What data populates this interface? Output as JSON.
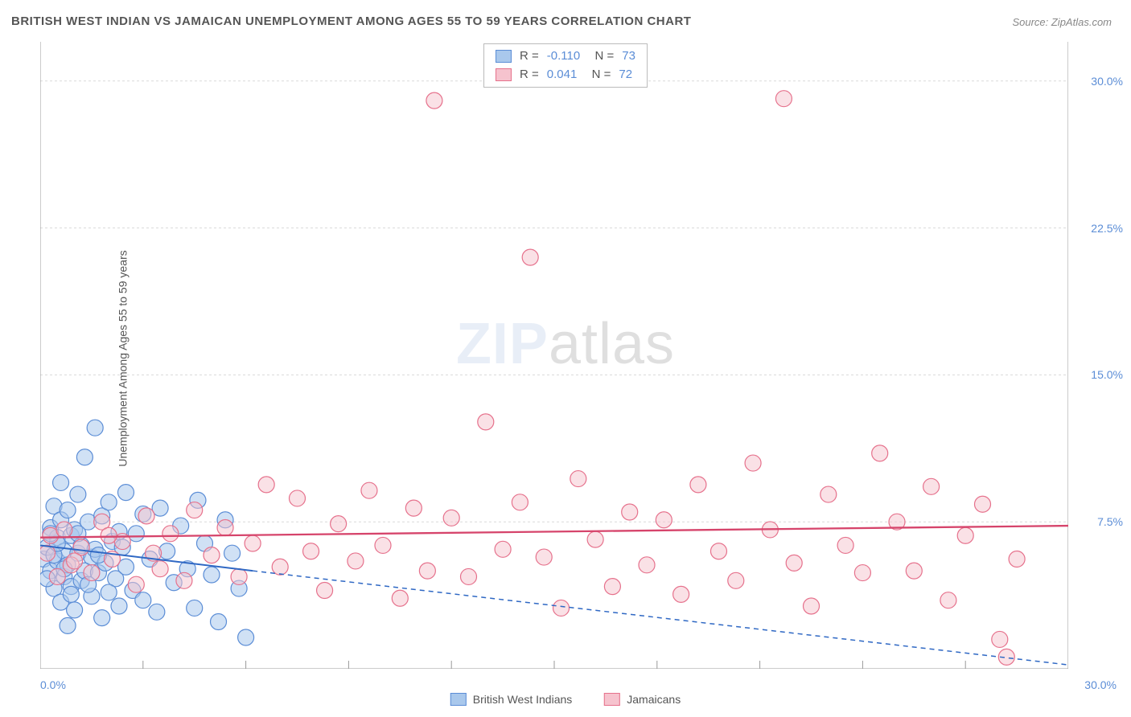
{
  "title": "BRITISH WEST INDIAN VS JAMAICAN UNEMPLOYMENT AMONG AGES 55 TO 59 YEARS CORRELATION CHART",
  "source": "Source: ZipAtlas.com",
  "ylabel": "Unemployment Among Ages 55 to 59 years",
  "watermark_a": "ZIP",
  "watermark_b": "atlas",
  "chart": {
    "type": "scatter",
    "xlim": [
      0,
      30
    ],
    "ylim": [
      0,
      32
    ],
    "x_axis_min_label": "0.0%",
    "x_axis_max_label": "30.0%",
    "y_ticks": [
      7.5,
      15.0,
      22.5,
      30.0
    ],
    "y_tick_labels": [
      "7.5%",
      "15.0%",
      "22.5%",
      "30.0%"
    ],
    "x_minor_ticks": [
      3,
      6,
      9,
      12,
      15,
      18,
      21,
      24,
      27
    ],
    "grid_color": "#d9d9d9",
    "axis_color": "#999999",
    "background": "#ffffff",
    "marker_radius": 10,
    "marker_stroke_width": 1.2,
    "series": [
      {
        "name": "British West Indians",
        "fill": "#a9c8ec",
        "stroke": "#5b8dd6",
        "fill_opacity": 0.55,
        "R": "-0.110",
        "N": "73",
        "trend": {
          "x1": 0,
          "y1": 6.3,
          "x2": 6.2,
          "y2": 5.0,
          "dash_x2": 30,
          "dash_y2": 0.2,
          "color": "#2f68c4",
          "width": 2
        },
        "points": [
          [
            0.1,
            5.6
          ],
          [
            0.2,
            6.2
          ],
          [
            0.3,
            5.0
          ],
          [
            0.3,
            7.2
          ],
          [
            0.4,
            4.1
          ],
          [
            0.4,
            8.3
          ],
          [
            0.5,
            5.5
          ],
          [
            0.5,
            6.7
          ],
          [
            0.6,
            3.4
          ],
          [
            0.6,
            7.6
          ],
          [
            0.6,
            9.5
          ],
          [
            0.7,
            4.7
          ],
          [
            0.7,
            6.0
          ],
          [
            0.8,
            2.2
          ],
          [
            0.8,
            5.3
          ],
          [
            0.8,
            8.1
          ],
          [
            0.9,
            6.8
          ],
          [
            0.9,
            4.2
          ],
          [
            1.0,
            7.1
          ],
          [
            1.0,
            3.0
          ],
          [
            1.1,
            5.9
          ],
          [
            1.1,
            8.9
          ],
          [
            1.2,
            6.3
          ],
          [
            1.2,
            4.5
          ],
          [
            1.3,
            10.8
          ],
          [
            1.3,
            5.0
          ],
          [
            1.4,
            7.5
          ],
          [
            1.5,
            5.7
          ],
          [
            1.5,
            3.7
          ],
          [
            1.6,
            6.1
          ],
          [
            1.6,
            12.3
          ],
          [
            1.7,
            4.9
          ],
          [
            1.8,
            7.8
          ],
          [
            1.8,
            2.6
          ],
          [
            1.9,
            5.4
          ],
          [
            2.0,
            8.5
          ],
          [
            2.1,
            6.5
          ],
          [
            2.2,
            4.6
          ],
          [
            2.3,
            3.2
          ],
          [
            2.3,
            7.0
          ],
          [
            2.5,
            9.0
          ],
          [
            2.5,
            5.2
          ],
          [
            2.7,
            4.0
          ],
          [
            2.8,
            6.9
          ],
          [
            3.0,
            3.5
          ],
          [
            3.0,
            7.9
          ],
          [
            3.2,
            5.6
          ],
          [
            3.4,
            2.9
          ],
          [
            3.5,
            8.2
          ],
          [
            3.7,
            6.0
          ],
          [
            3.9,
            4.4
          ],
          [
            4.1,
            7.3
          ],
          [
            4.3,
            5.1
          ],
          [
            4.5,
            3.1
          ],
          [
            4.6,
            8.6
          ],
          [
            4.8,
            6.4
          ],
          [
            5.0,
            4.8
          ],
          [
            5.2,
            2.4
          ],
          [
            5.4,
            7.6
          ],
          [
            5.6,
            5.9
          ],
          [
            5.8,
            4.1
          ],
          [
            6.0,
            1.6
          ],
          [
            0.4,
            5.8
          ],
          [
            0.5,
            6.4
          ],
          [
            0.7,
            5.1
          ],
          [
            0.9,
            3.8
          ],
          [
            1.1,
            6.9
          ],
          [
            1.4,
            4.3
          ],
          [
            1.7,
            5.8
          ],
          [
            2.0,
            3.9
          ],
          [
            2.4,
            6.2
          ],
          [
            0.2,
            4.6
          ],
          [
            0.3,
            6.9
          ]
        ]
      },
      {
        "name": "Jamaicans",
        "fill": "#f6c3ce",
        "stroke": "#e6718c",
        "fill_opacity": 0.5,
        "R": "0.041",
        "N": "72",
        "trend": {
          "x1": 0,
          "y1": 6.7,
          "x2": 30,
          "y2": 7.3,
          "color": "#d6446b",
          "width": 2.3
        },
        "points": [
          [
            0.2,
            5.9
          ],
          [
            0.3,
            6.8
          ],
          [
            0.5,
            4.7
          ],
          [
            0.7,
            7.1
          ],
          [
            0.9,
            5.3
          ],
          [
            1.2,
            6.2
          ],
          [
            1.5,
            4.9
          ],
          [
            1.8,
            7.5
          ],
          [
            2.1,
            5.6
          ],
          [
            2.4,
            6.5
          ],
          [
            2.8,
            4.3
          ],
          [
            3.1,
            7.8
          ],
          [
            3.5,
            5.1
          ],
          [
            3.8,
            6.9
          ],
          [
            4.2,
            4.5
          ],
          [
            4.5,
            8.1
          ],
          [
            5.0,
            5.8
          ],
          [
            5.4,
            7.2
          ],
          [
            5.8,
            4.7
          ],
          [
            6.2,
            6.4
          ],
          [
            6.6,
            9.4
          ],
          [
            7.0,
            5.2
          ],
          [
            7.5,
            8.7
          ],
          [
            7.9,
            6.0
          ],
          [
            8.3,
            4.0
          ],
          [
            8.7,
            7.4
          ],
          [
            9.2,
            5.5
          ],
          [
            9.6,
            9.1
          ],
          [
            10.0,
            6.3
          ],
          [
            10.5,
            3.6
          ],
          [
            10.9,
            8.2
          ],
          [
            11.3,
            5.0
          ],
          [
            11.5,
            29.0
          ],
          [
            12.0,
            7.7
          ],
          [
            12.5,
            4.7
          ],
          [
            13.0,
            12.6
          ],
          [
            13.5,
            6.1
          ],
          [
            14.0,
            8.5
          ],
          [
            14.3,
            21.0
          ],
          [
            14.7,
            5.7
          ],
          [
            15.2,
            3.1
          ],
          [
            15.7,
            9.7
          ],
          [
            16.2,
            6.6
          ],
          [
            16.7,
            4.2
          ],
          [
            17.2,
            8.0
          ],
          [
            17.7,
            5.3
          ],
          [
            18.2,
            7.6
          ],
          [
            18.7,
            3.8
          ],
          [
            19.2,
            9.4
          ],
          [
            19.8,
            6.0
          ],
          [
            20.3,
            4.5
          ],
          [
            20.8,
            10.5
          ],
          [
            21.3,
            7.1
          ],
          [
            21.7,
            29.1
          ],
          [
            22.0,
            5.4
          ],
          [
            22.5,
            3.2
          ],
          [
            23.0,
            8.9
          ],
          [
            23.5,
            6.3
          ],
          [
            24.0,
            4.9
          ],
          [
            24.5,
            11.0
          ],
          [
            25.0,
            7.5
          ],
          [
            25.5,
            5.0
          ],
          [
            26.0,
            9.3
          ],
          [
            26.5,
            3.5
          ],
          [
            27.0,
            6.8
          ],
          [
            27.5,
            8.4
          ],
          [
            28.0,
            1.5
          ],
          [
            28.2,
            0.6
          ],
          [
            28.5,
            5.6
          ],
          [
            1.0,
            5.5
          ],
          [
            2.0,
            6.8
          ],
          [
            3.3,
            5.9
          ]
        ]
      }
    ]
  },
  "legend": {
    "items": [
      {
        "label": "British West Indians",
        "fill": "#a9c8ec",
        "stroke": "#5b8dd6"
      },
      {
        "label": "Jamaicans",
        "fill": "#f6c3ce",
        "stroke": "#e6718c"
      }
    ]
  }
}
